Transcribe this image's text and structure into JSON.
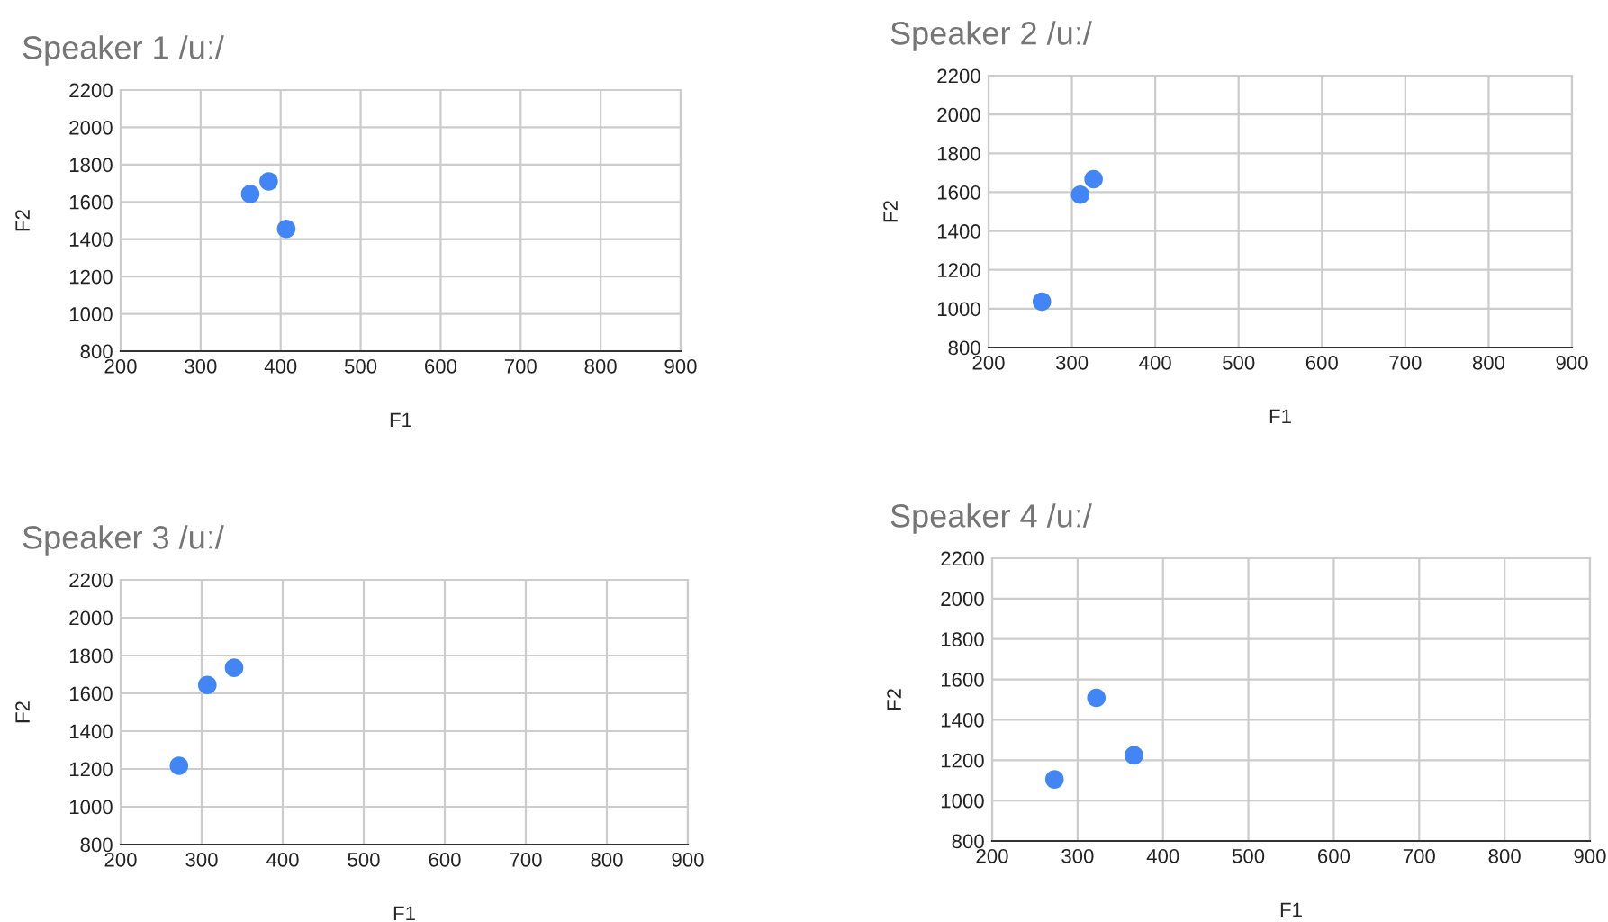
{
  "chart_data": [
    {
      "type": "scatter",
      "title": "Speaker 1 /uː/",
      "xlabel": "F1",
      "ylabel": "F2",
      "x": [
        362,
        385,
        407
      ],
      "series": [
        {
          "color": "#4285f4",
          "values": [
            1642,
            1710,
            1455
          ]
        }
      ],
      "xlim": [
        200,
        900
      ],
      "ylim": [
        800,
        2200
      ],
      "xticks": [
        200,
        300,
        400,
        500,
        600,
        700,
        800,
        900
      ],
      "yticks": [
        800,
        1000,
        1200,
        1400,
        1600,
        1800,
        2000,
        2200
      ],
      "grid": true,
      "marker": "circle",
      "legend": false
    },
    {
      "type": "scatter",
      "title": "Speaker 2 /uː/",
      "xlabel": "F1",
      "ylabel": "F2",
      "x": [
        264,
        310,
        326
      ],
      "series": [
        {
          "color": "#4285f4",
          "values": [
            1036,
            1587,
            1667
          ]
        }
      ],
      "xlim": [
        200,
        900
      ],
      "ylim": [
        800,
        2200
      ],
      "xticks": [
        200,
        300,
        400,
        500,
        600,
        700,
        800,
        900
      ],
      "yticks": [
        800,
        1000,
        1200,
        1400,
        1600,
        1800,
        2000,
        2200
      ],
      "grid": true,
      "marker": "circle",
      "legend": false
    },
    {
      "type": "scatter",
      "title": "Speaker 3 /uː/",
      "xlabel": "F1",
      "ylabel": "F2",
      "x": [
        272,
        307,
        340
      ],
      "series": [
        {
          "color": "#4285f4",
          "values": [
            1217,
            1644,
            1735
          ]
        }
      ],
      "xlim": [
        200,
        900
      ],
      "ylim": [
        800,
        2200
      ],
      "xticks": [
        200,
        300,
        400,
        500,
        600,
        700,
        800,
        900
      ],
      "yticks": [
        800,
        1000,
        1200,
        1400,
        1600,
        1800,
        2000,
        2200
      ],
      "grid": true,
      "marker": "circle",
      "legend": false
    },
    {
      "type": "scatter",
      "title": "Speaker 4 /uː/",
      "xlabel": "F1",
      "ylabel": "F2",
      "x": [
        273,
        322,
        366
      ],
      "series": [
        {
          "color": "#4285f4",
          "values": [
            1105,
            1509,
            1224
          ]
        }
      ],
      "xlim": [
        200,
        900
      ],
      "ylim": [
        800,
        2200
      ],
      "xticks": [
        200,
        300,
        400,
        500,
        600,
        700,
        800,
        900
      ],
      "yticks": [
        800,
        1000,
        1200,
        1400,
        1600,
        1800,
        2000,
        2200
      ],
      "grid": true,
      "marker": "circle",
      "legend": false
    }
  ]
}
